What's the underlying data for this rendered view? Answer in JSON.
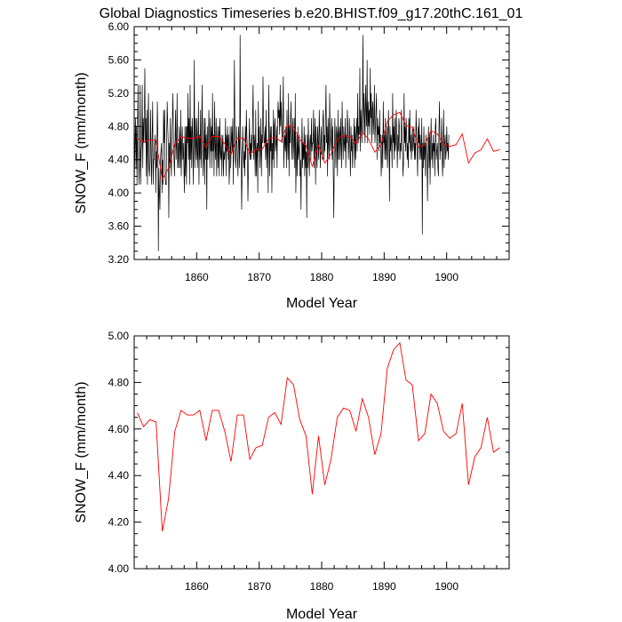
{
  "chart_data": [
    {
      "type": "line",
      "title": "Global Diagnostics Timeseries b.e20.BHIST.f09_g17.20thC.161_01",
      "xlabel": "Model Year",
      "ylabel": "SNOW_F (mm/month)",
      "xlim": [
        1850,
        1910
      ],
      "ylim": [
        3.2,
        6.0
      ],
      "xticks": [
        1860,
        1870,
        1880,
        1890,
        1900
      ],
      "xtick_labels": [
        "1860",
        "1870",
        "1880",
        "1890",
        "1900"
      ],
      "yticks": [
        3.2,
        3.6,
        4.0,
        4.4,
        4.8,
        5.2,
        5.6,
        6.0
      ],
      "ytick_labels": [
        "3.20",
        "3.60",
        "4.00",
        "4.40",
        "4.80",
        "5.20",
        "5.60",
        "6.00"
      ],
      "series": [
        {
          "color": "#000000",
          "x_start": 1850.04,
          "x_step": 0.0833,
          "values": [
            4.2,
            4.6,
            4.9,
            4.3,
            4.8,
            4.1,
            4.8,
            5.3,
            4.4,
            4.1,
            4.5,
            5.3,
            4.1,
            4.5,
            4.6,
            5.3,
            4.3,
            4.9,
            4.6,
            4.9,
            5.5,
            4.6,
            4.9,
            4.2,
            5.0,
            4.1,
            4.8,
            5.2,
            4.3,
            4.2,
            4.4,
            5.0,
            4.4,
            4.1,
            4.7,
            5.1,
            4.1,
            4.4,
            4.4,
            4.6,
            4.7,
            4.0,
            4.5,
            4.3,
            5.1,
            4.7,
            3.3,
            4.3,
            4.0,
            3.8,
            4.4,
            4.5,
            4.6,
            4.0,
            4.4,
            4.1,
            5.0,
            4.6,
            5.0,
            4.2,
            4.1,
            4.1,
            4.7,
            5.1,
            4.8,
            4.6,
            3.7,
            4.6,
            4.3,
            4.9,
            4.4,
            4.2,
            4.7,
            4.9,
            5.2,
            4.6,
            4.4,
            4.2,
            4.6,
            5.0,
            4.4,
            4.6,
            5.2,
            4.3,
            4.6,
            4.3,
            4.8,
            4.6,
            4.3,
            5.0,
            4.2,
            4.6,
            4.8,
            4.4,
            4.6,
            4.3,
            4.0,
            4.8,
            4.2,
            4.8,
            4.1,
            4.8,
            4.6,
            5.2,
            4.4,
            4.9,
            4.1,
            5.3,
            4.4,
            4.8,
            4.3,
            4.9,
            4.7,
            4.1,
            4.6,
            5.6,
            4.3,
            4.9,
            4.6,
            4.4,
            4.9,
            4.3,
            4.5,
            5.1,
            4.1,
            4.7,
            4.4,
            5.0,
            4.3,
            4.5,
            5.3,
            4.6,
            4.2,
            4.5,
            4.9,
            4.1,
            4.9,
            4.4,
            4.7,
            3.8,
            4.8,
            4.4,
            4.6,
            5.0,
            4.6,
            4.3,
            4.9,
            4.5,
            4.8,
            4.3,
            5.2,
            4.5,
            4.7,
            4.2,
            5.1,
            4.6,
            4.4,
            4.9,
            4.2,
            4.5,
            4.8,
            4.3,
            4.8,
            4.2,
            4.9,
            4.5,
            4.4,
            4.7,
            4.2,
            4.6,
            4.7,
            4.2,
            4.5,
            4.4,
            4.5,
            4.9,
            4.2,
            4.7,
            4.5,
            4.8,
            4.4,
            4.7,
            4.1,
            4.3,
            4.8,
            4.3,
            4.6,
            4.8,
            4.5,
            4.9,
            4.1,
            4.6,
            5.6,
            4.8,
            4.4,
            4.3,
            4.8,
            4.6,
            4.4,
            4.2,
            4.8,
            4.6,
            4.3,
            5.9,
            4.6,
            4.4,
            3.8,
            4.3,
            4.8,
            4.5,
            4.3,
            4.5,
            4.2,
            4.8,
            4.4,
            5.0,
            4.7,
            4.5,
            3.9,
            4.3,
            4.6,
            4.9,
            4.4,
            4.6,
            4.4,
            4.7,
            4.5,
            4.9,
            5.3,
            4.4,
            4.7,
            4.6,
            4.2,
            5.0,
            4.2,
            4.5,
            4.6,
            4.0,
            5.1,
            4.5,
            4.8,
            4.3,
            4.5,
            4.9,
            4.2,
            4.7,
            4.6,
            5.4,
            4.8,
            4.6,
            4.6,
            4.8,
            4.4,
            5.0,
            4.3,
            4.6,
            4.6,
            4.0,
            5.3,
            4.7,
            4.2,
            4.8,
            4.5,
            4.8,
            4.0,
            4.6,
            4.4,
            5.0,
            4.3,
            4.8,
            4.9,
            4.5,
            4.6,
            4.8,
            4.3,
            4.9,
            5.1,
            4.9,
            5.0,
            4.7,
            5.3,
            4.8,
            5.1,
            4.8,
            4.6,
            4.9,
            5.4,
            4.3,
            4.6,
            4.7,
            4.5,
            4.8,
            4.3,
            5.0,
            4.6,
            4.4,
            5.2,
            4.2,
            4.8,
            4.6,
            4.9,
            5.1,
            4.4,
            4.7,
            4.9,
            4.4,
            4.6,
            4.9,
            4.3,
            5.2,
            4.0,
            4.4,
            4.7,
            4.2,
            4.8,
            4.4,
            4.5,
            4.7,
            4.2,
            4.4,
            3.8,
            4.5,
            4.9,
            4.3,
            4.6,
            4.4,
            4.8,
            4.2,
            4.7,
            4.3,
            4.5,
            3.7,
            4.7,
            4.3,
            4.9,
            4.5,
            4.2,
            4.6,
            4.7,
            4.4,
            4.9,
            4.5,
            4.6,
            4.6,
            5.0,
            4.3,
            4.6,
            4.9,
            4.1,
            4.8,
            4.5,
            4.3,
            4.8,
            4.6,
            4.4,
            5.0,
            4.7,
            4.3,
            4.6,
            4.8,
            4.5,
            4.4,
            4.9,
            5.0,
            4.4,
            4.7,
            4.5,
            4.9,
            5.3,
            4.6,
            4.8,
            4.2,
            4.9,
            4.6,
            4.4,
            5.2,
            4.7,
            4.5,
            4.7,
            4.9,
            4.4,
            4.8,
            4.2,
            3.7,
            4.5,
            4.9,
            4.6,
            4.3,
            4.8,
            4.7,
            4.2,
            5.0,
            4.4,
            4.7,
            4.8,
            4.4,
            4.9,
            4.6,
            4.3,
            5.1,
            4.7,
            4.4,
            4.8,
            4.6,
            4.5,
            4.9,
            4.3,
            4.7,
            4.6,
            5.0,
            4.8,
            4.4,
            4.6,
            4.9,
            4.5,
            4.2,
            4.8,
            4.5,
            4.7,
            4.3,
            4.6,
            4.6,
            4.9,
            4.3,
            4.8,
            4.4,
            4.7,
            4.9,
            4.5,
            5.2,
            4.6,
            4.8,
            4.7,
            5.5,
            4.5,
            5.0,
            4.8,
            4.6,
            5.1,
            5.9,
            4.7,
            5.2,
            4.9,
            4.6,
            5.3,
            5.0,
            4.8,
            5.6,
            4.6,
            5.1,
            4.8,
            5.0,
            4.7,
            5.5,
            4.9,
            5.2,
            4.6,
            5.0,
            5.1,
            4.7,
            4.9,
            5.3,
            4.6,
            4.8,
            5.0,
            5.2,
            4.4,
            4.9,
            4.7,
            4.8,
            4.5,
            5.0,
            4.6,
            4.7,
            4.2,
            4.4,
            4.7,
            4.3,
            5.1,
            4.6,
            4.7,
            4.4,
            4.9,
            4.4,
            4.6,
            4.8,
            4.3,
            4.5,
            5.0,
            4.7,
            3.9,
            4.8,
            4.5,
            4.7,
            4.6,
            4.3,
            5.2,
            4.6,
            4.8,
            4.4,
            4.9,
            4.5,
            4.6,
            5.0,
            4.7,
            4.3,
            4.7,
            4.5,
            4.9,
            4.8,
            4.4,
            4.6,
            4.5,
            5.0,
            4.7,
            4.5,
            4.2,
            4.4,
            5.2,
            4.6,
            4.8,
            4.5,
            4.9,
            4.7,
            4.4,
            4.6,
            4.3,
            4.9,
            4.6,
            5.0,
            4.5,
            4.7,
            4.4,
            4.6,
            4.8,
            4.5,
            4.6,
            4.8,
            4.4,
            4.6,
            4.4,
            5.0,
            4.7,
            4.5,
            4.2,
            4.8,
            4.6,
            4.9,
            4.4,
            4.7,
            4.5,
            4.4,
            4.9,
            3.5,
            4.6,
            4.3,
            4.8,
            4.4,
            4.6,
            4.2,
            4.7,
            4.5,
            4.4,
            3.9,
            4.6,
            4.8,
            4.3,
            4.7,
            4.1,
            4.6,
            4.9,
            4.4,
            4.6,
            4.3,
            4.7,
            4.5,
            4.6,
            4.2,
            4.8,
            4.9,
            4.4,
            4.5,
            4.6,
            4.3,
            4.2,
            4.8,
            5.1,
            4.4,
            4.6,
            4.5,
            4.9,
            4.4,
            4.2,
            4.6,
            5.0,
            4.3,
            4.6,
            4.7,
            4.4,
            4.5,
            4.8,
            4.5,
            4.6,
            4.4,
            4.7
          ]
        },
        {
          "color": "#ff0000",
          "x_start": 1850.5,
          "x_step": 1.0,
          "values": [
            4.66,
            4.61,
            4.64,
            4.63,
            4.16,
            4.3,
            4.59,
            4.68,
            4.66,
            4.66,
            4.68,
            4.55,
            4.68,
            4.68,
            4.59,
            4.46,
            4.66,
            4.66,
            4.47,
            4.52,
            4.53,
            4.65,
            4.67,
            4.62,
            4.82,
            4.79,
            4.64,
            4.57,
            4.32,
            4.57,
            4.36,
            4.47,
            4.65,
            4.69,
            4.68,
            4.59,
            4.73,
            4.65,
            4.49,
            4.58,
            4.86,
            4.94,
            4.97,
            4.81,
            4.79,
            4.55,
            4.58,
            4.75,
            4.71,
            4.59,
            4.56,
            4.58,
            4.71,
            4.36,
            4.48,
            4.52,
            4.65,
            4.5,
            4.52
          ]
        }
      ]
    },
    {
      "type": "line",
      "title": "",
      "xlabel": "Model Year",
      "ylabel": "SNOW_F (mm/month)",
      "xlim": [
        1850,
        1910
      ],
      "ylim": [
        4.0,
        5.0
      ],
      "xticks": [
        1860,
        1870,
        1880,
        1890,
        1900
      ],
      "xtick_labels": [
        "1860",
        "1870",
        "1880",
        "1890",
        "1900"
      ],
      "yticks": [
        4.0,
        4.2,
        4.4,
        4.6,
        4.8,
        5.0
      ],
      "ytick_labels": [
        "4.00",
        "4.20",
        "4.40",
        "4.60",
        "4.80",
        "5.00"
      ],
      "series": [
        {
          "color": "#ff0000",
          "x_start": 1850.5,
          "x_step": 1.0,
          "values": [
            4.67,
            4.61,
            4.64,
            4.63,
            4.16,
            4.3,
            4.59,
            4.68,
            4.66,
            4.66,
            4.68,
            4.55,
            4.68,
            4.68,
            4.59,
            4.46,
            4.66,
            4.66,
            4.47,
            4.52,
            4.53,
            4.65,
            4.67,
            4.62,
            4.82,
            4.79,
            4.64,
            4.57,
            4.32,
            4.57,
            4.36,
            4.47,
            4.65,
            4.69,
            4.68,
            4.59,
            4.73,
            4.65,
            4.49,
            4.58,
            4.86,
            4.94,
            4.97,
            4.81,
            4.79,
            4.55,
            4.58,
            4.75,
            4.71,
            4.59,
            4.56,
            4.58,
            4.71,
            4.36,
            4.48,
            4.52,
            4.65,
            4.5,
            4.52
          ]
        }
      ]
    }
  ]
}
